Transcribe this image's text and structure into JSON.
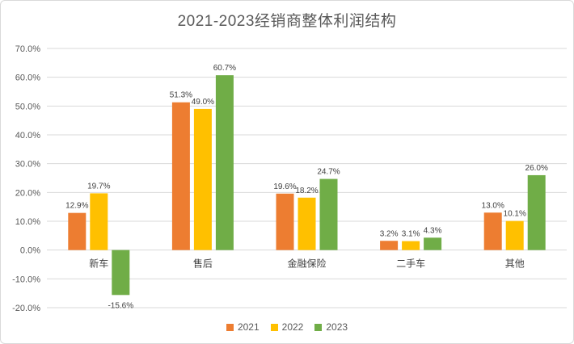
{
  "title": "2021-2023经销商整体利润结构",
  "colors": {
    "2021": "#ed7d31",
    "2022": "#ffc000",
    "2023": "#70ad47",
    "grid": "#d9d9d9"
  },
  "chart_data": {
    "type": "bar",
    "title": "2021-2023经销商整体利润结构",
    "categories": [
      "新车",
      "售后",
      "金融保险",
      "二手车",
      "其他"
    ],
    "series": [
      {
        "name": "2021",
        "values": [
          12.9,
          51.3,
          19.6,
          3.2,
          13.0
        ],
        "labels": [
          "12.9%",
          "51.3%",
          "19.6%",
          "3.2%",
          "13.0%"
        ]
      },
      {
        "name": "2022",
        "values": [
          19.7,
          49.0,
          18.2,
          3.1,
          10.1
        ],
        "labels": [
          "19.7%",
          "49.0%",
          "18.2%",
          "3.1%",
          "10.1%"
        ]
      },
      {
        "name": "2023",
        "values": [
          -15.6,
          60.7,
          24.7,
          4.3,
          26.0
        ],
        "labels": [
          "-15.6%",
          "60.7%",
          "24.7%",
          "4.3%",
          "26.0%"
        ]
      }
    ],
    "yticks": [
      "-20.0%",
      "-10.0%",
      "0.0%",
      "10.0%",
      "20.0%",
      "30.0%",
      "40.0%",
      "50.0%",
      "60.0%",
      "70.0%"
    ],
    "ylim": [
      -20,
      70
    ],
    "grid": true,
    "legend_position": "bottom"
  },
  "legend": [
    "2021",
    "2022",
    "2023"
  ]
}
